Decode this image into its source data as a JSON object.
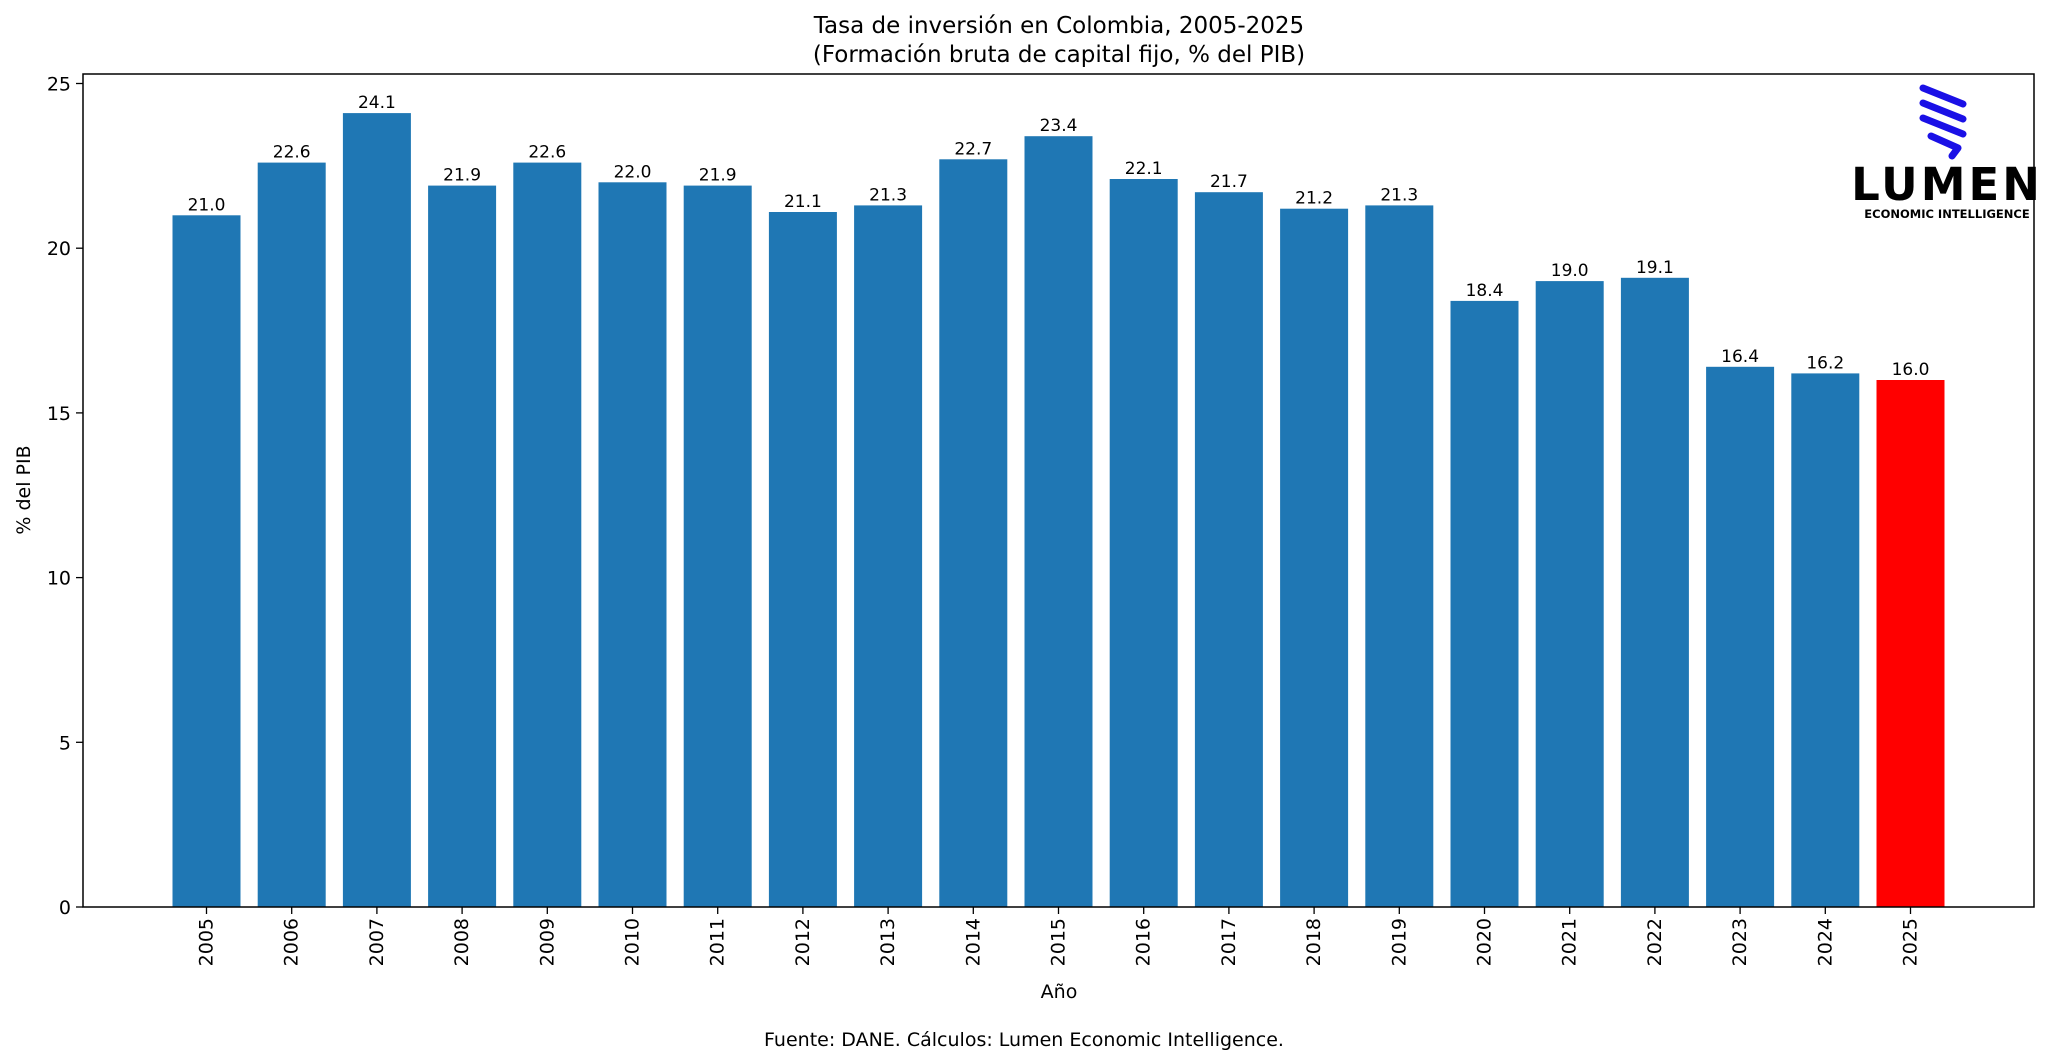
{
  "chart_data": {
    "type": "bar",
    "title": "Tasa de inversión en Colombia, 2005-2025",
    "subtitle": "(Formación bruta de capital fijo, % del PIB)",
    "xlabel": "Año",
    "ylabel": "% del PIB",
    "ylim": [
      0,
      25
    ],
    "yticks": [
      "0",
      "5",
      "10",
      "15",
      "20",
      "25"
    ],
    "categories": [
      "2005",
      "2006",
      "2007",
      "2008",
      "2009",
      "2010",
      "2011",
      "2012",
      "2013",
      "2014",
      "2015",
      "2016",
      "2017",
      "2018",
      "2019",
      "2020",
      "2021",
      "2022",
      "2023",
      "2024",
      "2025"
    ],
    "values": [
      21.0,
      22.6,
      24.1,
      21.9,
      22.6,
      22.0,
      21.9,
      21.1,
      21.3,
      22.7,
      23.4,
      22.1,
      21.7,
      21.2,
      21.3,
      18.4,
      19.0,
      19.1,
      16.4,
      16.2,
      16.0
    ],
    "labels": [
      "21.0",
      "22.6",
      "24.1",
      "21.9",
      "22.6",
      "22.0",
      "21.9",
      "21.1",
      "21.3",
      "22.7",
      "23.4",
      "22.1",
      "21.7",
      "21.2",
      "21.3",
      "18.4",
      "19.0",
      "19.1",
      "16.4",
      "16.2",
      "16.0"
    ],
    "colors": {
      "default": "#1f77b4",
      "highlight": "#ff0000"
    },
    "highlight_index": 20,
    "grid": false,
    "source": "Fuente: DANE. Cálculos: Lumen Economic Intelligence."
  },
  "logo": {
    "wordmark": "LUMEN",
    "tagline": "ECONOMIC INTELLIGENCE",
    "color": "#1a10e6",
    "text_color": "#000000"
  }
}
